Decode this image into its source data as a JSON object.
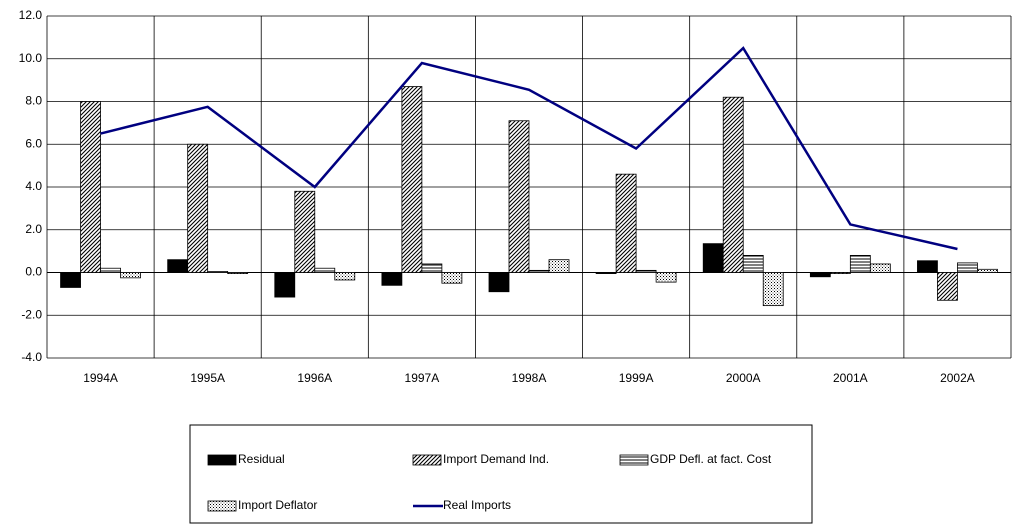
{
  "chart_data": {
    "type": "bar",
    "categories": [
      "1994A",
      "1995A",
      "1996A",
      "1997A",
      "1998A",
      "1999A",
      "2000A",
      "2001A",
      "2002A"
    ],
    "series": [
      {
        "name": "Residual",
        "type": "bar",
        "color": "#000000",
        "values": [
          -0.7,
          0.6,
          -1.15,
          -0.6,
          -0.9,
          -0.05,
          1.35,
          -0.2,
          0.55
        ]
      },
      {
        "name": "Import Demand Ind.",
        "type": "bar",
        "color": "#000000",
        "values": [
          8.0,
          6.0,
          3.8,
          8.7,
          7.1,
          4.6,
          8.2,
          -0.05,
          -1.3
        ]
      },
      {
        "name": "GDP Defl. at fact. Cost",
        "type": "bar",
        "color": "#000000",
        "values": [
          0.2,
          0.05,
          0.2,
          0.4,
          0.1,
          0.1,
          0.8,
          0.8,
          0.45
        ]
      },
      {
        "name": "Import Deflator",
        "type": "bar",
        "color": "#000000",
        "values": [
          -0.25,
          -0.05,
          -0.35,
          -0.5,
          0.6,
          -0.45,
          -1.55,
          0.4,
          0.15
        ]
      },
      {
        "name": "Real Imports",
        "type": "line",
        "color": "#000080",
        "values": [
          6.5,
          7.75,
          4.0,
          9.8,
          8.55,
          5.8,
          10.5,
          2.25,
          1.1
        ]
      }
    ],
    "ylim": [
      -4,
      12
    ],
    "yticks": [
      {
        "value": -4,
        "label": "-4.0"
      },
      {
        "value": -2,
        "label": "-2.0"
      },
      {
        "value": 0,
        "label": "0.0"
      },
      {
        "value": 2,
        "label": "2.0"
      },
      {
        "value": 4,
        "label": "4.0"
      },
      {
        "value": 6,
        "label": "6.0"
      },
      {
        "value": 8,
        "label": "8.0"
      },
      {
        "value": 10,
        "label": "10.0"
      },
      {
        "value": 12,
        "label": "12.0"
      }
    ],
    "grid": true,
    "legend": "bottom"
  }
}
